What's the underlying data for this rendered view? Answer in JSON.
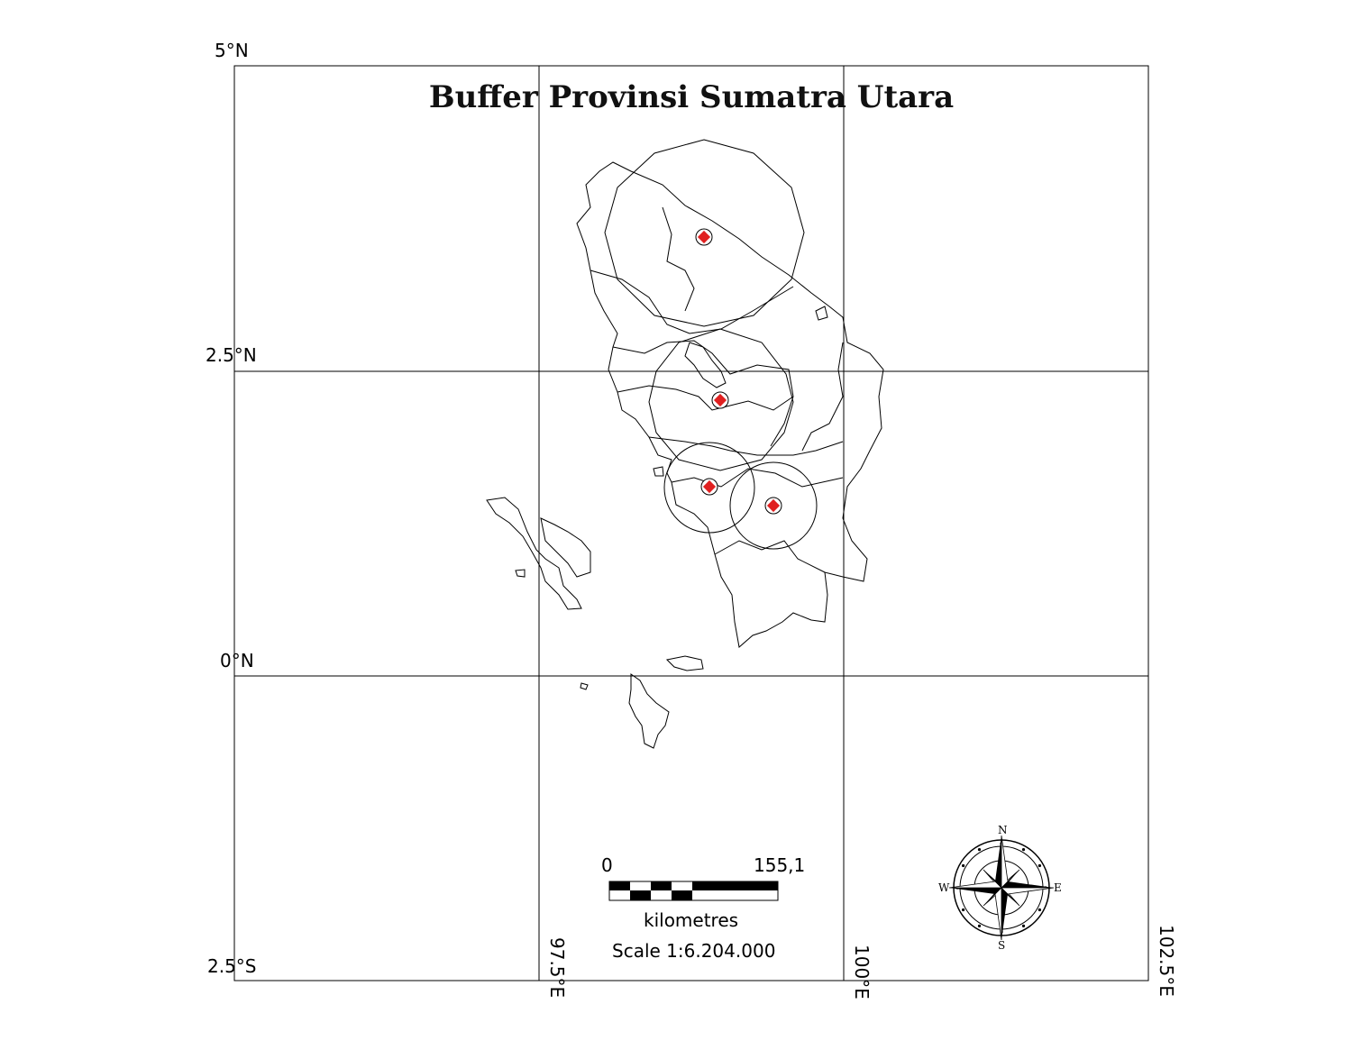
{
  "map": {
    "title": "Buffer Provinsi Sumatra Utara",
    "latitude_labels": [
      "5°N",
      "2.5°N",
      "0°N",
      "2.5°S"
    ],
    "longitude_labels": [
      "97.5°E",
      "100°E",
      "102.5°E"
    ],
    "scale_bar": {
      "start_label": "0",
      "end_label": "155,1",
      "unit_label": "kilometres",
      "scale_text": "Scale 1:6.204.000"
    },
    "north_arrow": {
      "n": "N",
      "e": "E",
      "s": "S",
      "w": "W"
    },
    "colors": {
      "point_marker": "#e02020",
      "lines": "#000000",
      "background": "#ffffff"
    }
  }
}
